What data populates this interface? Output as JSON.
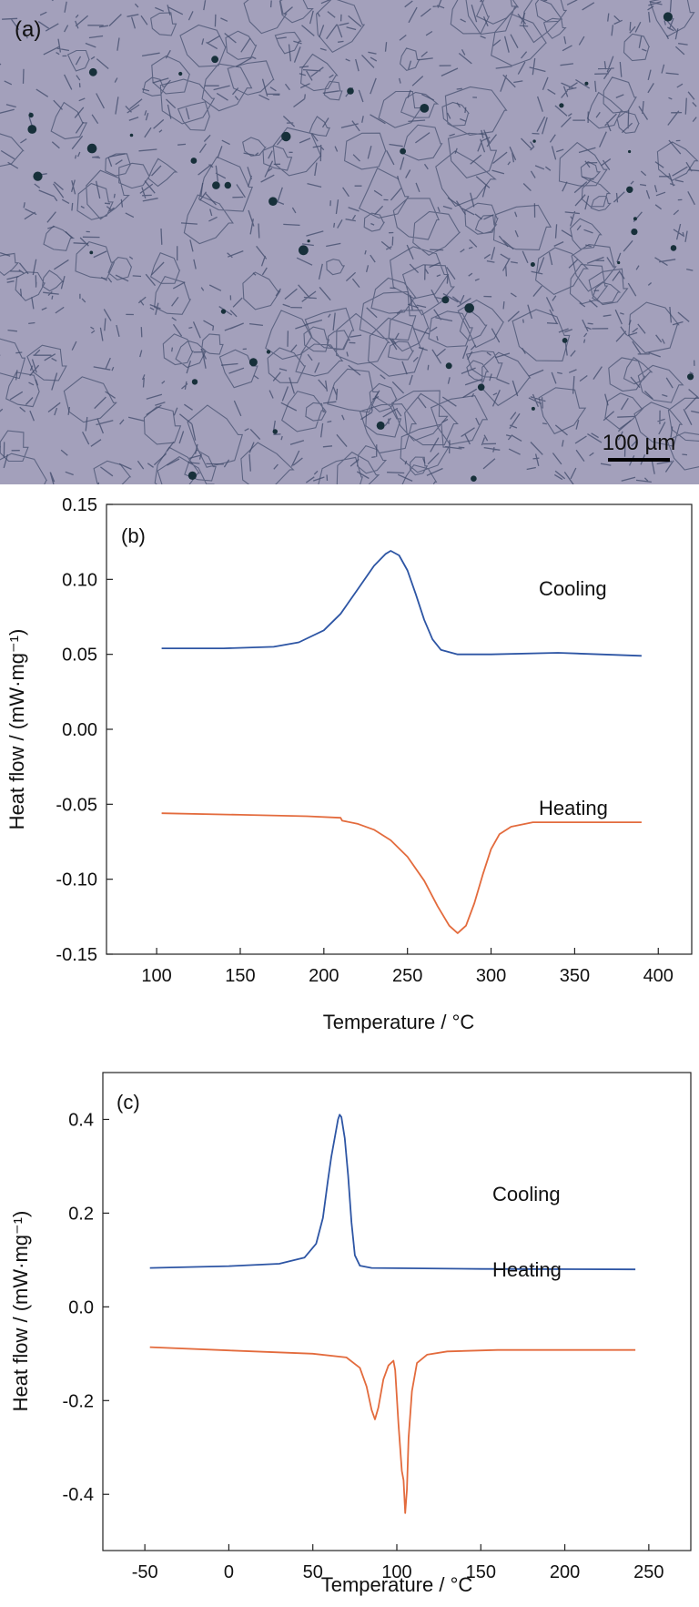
{
  "micrograph": {
    "panel_label": "(a)",
    "scale_bar_label": "100 µm",
    "colors": {
      "background": "#a3a0bb",
      "network": "#3f4a6a",
      "particles": "#17303a"
    }
  },
  "chart_data": [
    {
      "type": "line",
      "panel_label": "(b)",
      "title": "",
      "xlabel": "Temperature / °C",
      "ylabel": "Heat flow / (mW·mg⁻¹)",
      "xlim": [
        70,
        420
      ],
      "ylim": [
        -0.15,
        0.15
      ],
      "xticks": [
        100,
        150,
        200,
        250,
        300,
        350,
        400
      ],
      "xtick_labels": [
        "100",
        "150",
        "200",
        "250",
        "300",
        "350",
        "400"
      ],
      "yticks": [
        -0.15,
        -0.1,
        -0.05,
        0.0,
        0.05,
        0.1,
        0.15
      ],
      "ytick_labels": [
        "-0.15",
        "-0.10",
        "-0.05",
        "0.00",
        "0.05",
        "0.10",
        "0.15"
      ],
      "grid": false,
      "series": [
        {
          "name": "Cooling",
          "color": "#2d55a4",
          "points": [
            [
              103,
              0.054
            ],
            [
              140,
              0.054
            ],
            [
              170,
              0.055
            ],
            [
              185,
              0.058
            ],
            [
              200,
              0.066
            ],
            [
              210,
              0.077
            ],
            [
              220,
              0.093
            ],
            [
              230,
              0.109
            ],
            [
              237,
              0.117
            ],
            [
              240,
              0.119
            ],
            [
              245,
              0.116
            ],
            [
              250,
              0.106
            ],
            [
              255,
              0.09
            ],
            [
              260,
              0.073
            ],
            [
              265,
              0.06
            ],
            [
              270,
              0.053
            ],
            [
              280,
              0.05
            ],
            [
              300,
              0.05
            ],
            [
              340,
              0.051
            ],
            [
              390,
              0.049
            ]
          ]
        },
        {
          "name": "Heating",
          "color": "#e36b3d",
          "points": [
            [
              103,
              -0.056
            ],
            [
              150,
              -0.057
            ],
            [
              190,
              -0.058
            ],
            [
              210,
              -0.059
            ],
            [
              211,
              -0.061
            ],
            [
              220,
              -0.063
            ],
            [
              230,
              -0.067
            ],
            [
              240,
              -0.074
            ],
            [
              250,
              -0.085
            ],
            [
              260,
              -0.101
            ],
            [
              268,
              -0.118
            ],
            [
              275,
              -0.131
            ],
            [
              280,
              -0.136
            ],
            [
              285,
              -0.131
            ],
            [
              290,
              -0.116
            ],
            [
              295,
              -0.097
            ],
            [
              300,
              -0.08
            ],
            [
              305,
              -0.07
            ],
            [
              312,
              -0.065
            ],
            [
              325,
              -0.062
            ],
            [
              360,
              -0.062
            ],
            [
              390,
              -0.062
            ]
          ]
        }
      ]
    },
    {
      "type": "line",
      "panel_label": "(c)",
      "title": "",
      "xlabel": "Temperature / °C",
      "ylabel": "Heat flow / (mW·mg⁻¹)",
      "xlim": [
        -75,
        275
      ],
      "ylim": [
        -0.52,
        0.5
      ],
      "xticks": [
        -50,
        0,
        50,
        100,
        150,
        200,
        250
      ],
      "xtick_labels": [
        "-50",
        "0",
        "50",
        "100",
        "150",
        "200",
        "250"
      ],
      "yticks": [
        -0.4,
        -0.2,
        0.0,
        0.2,
        0.4
      ],
      "ytick_labels": [
        "-0.4",
        "-0.2",
        "0.0",
        "0.2",
        "0.4"
      ],
      "grid": false,
      "series": [
        {
          "name": "Cooling",
          "color": "#2d55a4",
          "points": [
            [
              -47,
              0.083
            ],
            [
              0,
              0.087
            ],
            [
              30,
              0.092
            ],
            [
              45,
              0.105
            ],
            [
              52,
              0.135
            ],
            [
              56,
              0.19
            ],
            [
              59,
              0.27
            ],
            [
              61,
              0.32
            ],
            [
              63,
              0.36
            ],
            [
              65,
              0.4
            ],
            [
              66,
              0.41
            ],
            [
              67,
              0.405
            ],
            [
              69,
              0.36
            ],
            [
              71,
              0.28
            ],
            [
              73,
              0.18
            ],
            [
              75,
              0.11
            ],
            [
              78,
              0.088
            ],
            [
              85,
              0.083
            ],
            [
              150,
              0.081
            ],
            [
              242,
              0.08
            ]
          ]
        },
        {
          "name": "Heating",
          "color": "#e36b3d",
          "points": [
            [
              -47,
              -0.086
            ],
            [
              0,
              -0.093
            ],
            [
              50,
              -0.1
            ],
            [
              70,
              -0.108
            ],
            [
              78,
              -0.13
            ],
            [
              82,
              -0.17
            ],
            [
              85,
              -0.22
            ],
            [
              87,
              -0.24
            ],
            [
              89,
              -0.215
            ],
            [
              92,
              -0.155
            ],
            [
              95,
              -0.125
            ],
            [
              98,
              -0.115
            ],
            [
              99,
              -0.135
            ],
            [
              101,
              -0.25
            ],
            [
              103,
              -0.35
            ],
            [
              104,
              -0.37
            ],
            [
              105,
              -0.44
            ],
            [
              106,
              -0.39
            ],
            [
              107,
              -0.28
            ],
            [
              109,
              -0.18
            ],
            [
              112,
              -0.12
            ],
            [
              118,
              -0.102
            ],
            [
              130,
              -0.095
            ],
            [
              160,
              -0.092
            ],
            [
              242,
              -0.092
            ]
          ]
        }
      ]
    }
  ]
}
